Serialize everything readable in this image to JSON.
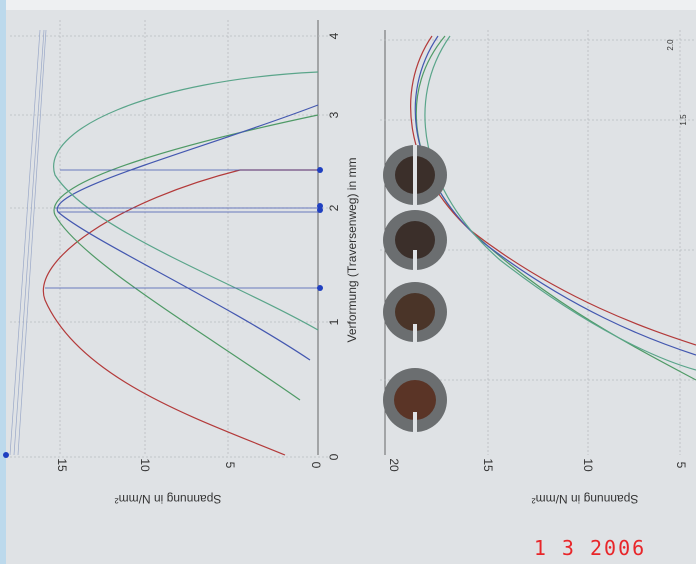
{
  "left_chart": {
    "y_axis_label": "Spannung in N/mm²",
    "x_axis_label": "Verformung (Traversenweg) in mm",
    "y_tick_labels": [
      "15",
      "10",
      "5",
      "0"
    ],
    "x_tick_labels": [
      "0",
      "1",
      "2",
      "3",
      "4"
    ]
  },
  "right_chart": {
    "y_axis_label": "Spannung in N/mm²",
    "y_tick_labels": [
      "20",
      "15",
      "10",
      "5"
    ],
    "x_tick_labels": [
      "2.0",
      "1.5"
    ]
  },
  "date_stamp": "1 3 2006"
}
